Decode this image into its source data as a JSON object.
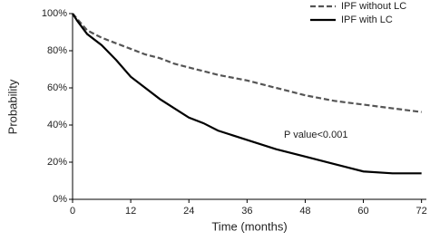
{
  "chart_data": {
    "type": "line",
    "x_label": "Time (months)",
    "y_label": "Probability",
    "annotation": "P value<0.001",
    "x": [
      0,
      1,
      3,
      6,
      9,
      12,
      15,
      18,
      21,
      24,
      27,
      30,
      36,
      42,
      48,
      54,
      60,
      66,
      72
    ],
    "series": [
      {
        "name": "IPF without LC",
        "color": "#555555",
        "line_style": "dashed",
        "values": [
          100,
          97,
          91,
          87,
          84,
          81,
          78,
          76,
          73,
          71,
          69,
          67,
          64,
          60,
          56,
          53,
          51,
          49,
          47
        ]
      },
      {
        "name": "IPF with LC",
        "color": "#000000",
        "line_style": "solid",
        "values": [
          100,
          96,
          89,
          83,
          75,
          66,
          60,
          54,
          49,
          44,
          41,
          37,
          32,
          27,
          23,
          19,
          15,
          14,
          14
        ]
      }
    ],
    "xlim": [
      0,
      73
    ],
    "xticks": [
      0,
      12,
      24,
      36,
      48,
      60,
      72
    ],
    "ylim": [
      0,
      100
    ],
    "yticks": [
      {
        "value": 0,
        "label": "0%"
      },
      {
        "value": 20,
        "label": "20%"
      },
      {
        "value": 40,
        "label": "40%"
      },
      {
        "value": 60,
        "label": "60%"
      },
      {
        "value": 80,
        "label": "80%"
      },
      {
        "value": 100,
        "label": "100%"
      }
    ],
    "legend": "top-right",
    "grid": false
  }
}
